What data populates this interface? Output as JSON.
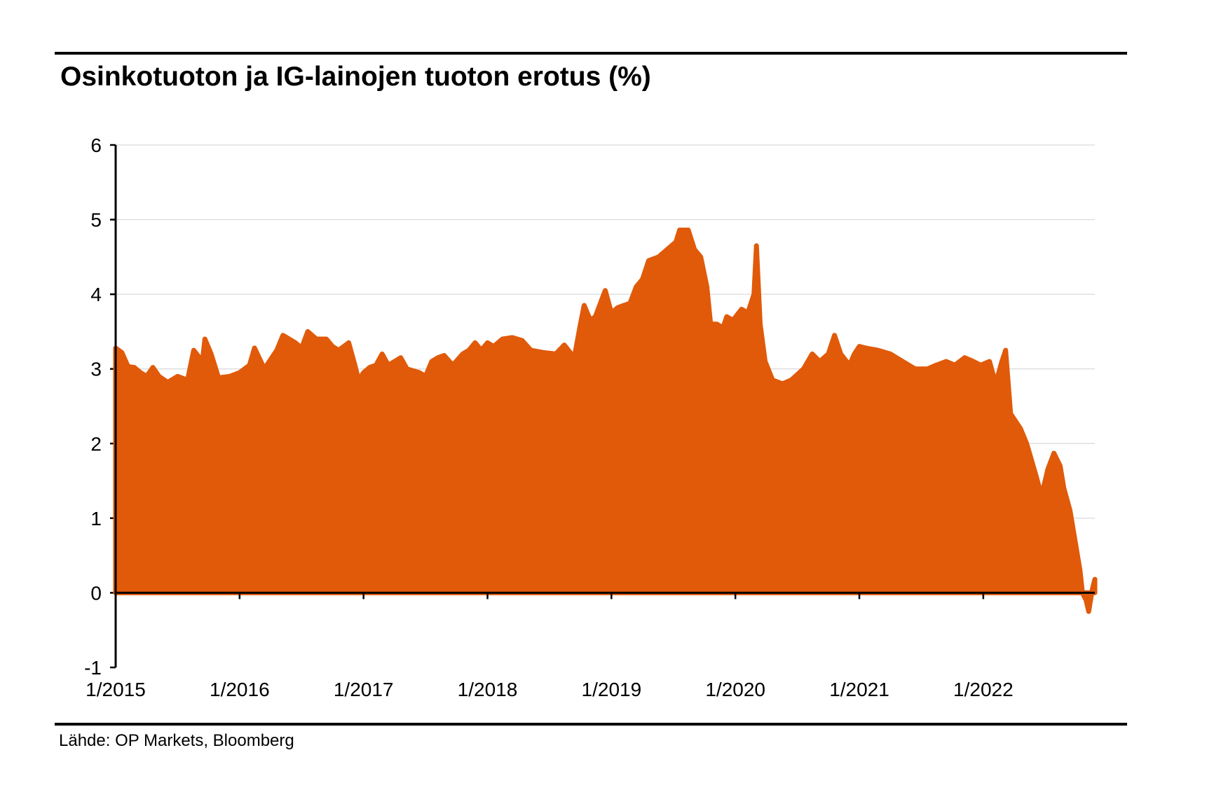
{
  "title": "Osinkotuoton ja IG-lainojen tuoton erotus (%)",
  "source": "Lähde: OP Markets, Bloomberg",
  "colors": {
    "series": "#E05A0A",
    "grid": "#D9D9D9",
    "axis": "#000000"
  },
  "chart_data": {
    "type": "area",
    "title": "Osinkotuoton ja IG-lainojen tuoton erotus (%)",
    "xlabel": "",
    "ylabel": "",
    "ylim": [
      -1,
      6
    ],
    "yticks": [
      "-1",
      "0",
      "1",
      "2",
      "3",
      "4",
      "5",
      "6"
    ],
    "xlim": [
      2015.0,
      2022.9
    ],
    "xticks": [
      {
        "x": 2015,
        "label": "1/2015"
      },
      {
        "x": 2016,
        "label": "1/2016"
      },
      {
        "x": 2017,
        "label": "1/2017"
      },
      {
        "x": 2018,
        "label": "1/2018"
      },
      {
        "x": 2019,
        "label": "1/2019"
      },
      {
        "x": 2020,
        "label": "1/2020"
      },
      {
        "x": 2021,
        "label": "1/2021"
      },
      {
        "x": 2022,
        "label": "1/2022"
      }
    ],
    "grid": true,
    "legend": "none",
    "series": [
      {
        "points": [
          [
            2015.0,
            3.28
          ],
          [
            2015.05,
            3.22
          ],
          [
            2015.1,
            3.03
          ],
          [
            2015.15,
            3.02
          ],
          [
            2015.2,
            2.95
          ],
          [
            2015.25,
            2.9
          ],
          [
            2015.3,
            3.02
          ],
          [
            2015.35,
            2.9
          ],
          [
            2015.42,
            2.82
          ],
          [
            2015.5,
            2.9
          ],
          [
            2015.58,
            2.85
          ],
          [
            2015.63,
            3.25
          ],
          [
            2015.7,
            3.1
          ],
          [
            2015.72,
            3.4
          ],
          [
            2015.77,
            3.2
          ],
          [
            2015.83,
            2.88
          ],
          [
            2015.92,
            2.9
          ],
          [
            2016.0,
            2.95
          ],
          [
            2016.08,
            3.05
          ],
          [
            2016.12,
            3.28
          ],
          [
            2016.2,
            3.0
          ],
          [
            2016.3,
            3.25
          ],
          [
            2016.35,
            3.45
          ],
          [
            2016.45,
            3.35
          ],
          [
            2016.5,
            3.28
          ],
          [
            2016.55,
            3.5
          ],
          [
            2016.62,
            3.4
          ],
          [
            2016.7,
            3.4
          ],
          [
            2016.75,
            3.3
          ],
          [
            2016.8,
            3.25
          ],
          [
            2016.88,
            3.35
          ],
          [
            2016.93,
            3.05
          ],
          [
            2016.96,
            2.85
          ],
          [
            2017.0,
            2.95
          ],
          [
            2017.05,
            3.02
          ],
          [
            2017.1,
            3.05
          ],
          [
            2017.15,
            3.2
          ],
          [
            2017.2,
            3.05
          ],
          [
            2017.25,
            3.1
          ],
          [
            2017.3,
            3.15
          ],
          [
            2017.35,
            3.0
          ],
          [
            2017.45,
            2.95
          ],
          [
            2017.5,
            2.9
          ],
          [
            2017.55,
            3.1
          ],
          [
            2017.6,
            3.15
          ],
          [
            2017.65,
            3.18
          ],
          [
            2017.72,
            3.05
          ],
          [
            2017.8,
            3.2
          ],
          [
            2017.85,
            3.25
          ],
          [
            2017.9,
            3.35
          ],
          [
            2017.95,
            3.25
          ],
          [
            2018.0,
            3.35
          ],
          [
            2018.05,
            3.3
          ],
          [
            2018.12,
            3.4
          ],
          [
            2018.2,
            3.42
          ],
          [
            2018.28,
            3.38
          ],
          [
            2018.35,
            3.25
          ],
          [
            2018.45,
            3.22
          ],
          [
            2018.55,
            3.2
          ],
          [
            2018.62,
            3.32
          ],
          [
            2018.7,
            3.15
          ],
          [
            2018.75,
            3.6
          ],
          [
            2018.78,
            3.85
          ],
          [
            2018.83,
            3.65
          ],
          [
            2018.87,
            3.7
          ],
          [
            2018.92,
            3.92
          ],
          [
            2018.95,
            4.05
          ],
          [
            2019.0,
            3.75
          ],
          [
            2019.05,
            3.82
          ],
          [
            2019.1,
            3.85
          ],
          [
            2019.15,
            3.88
          ],
          [
            2019.2,
            4.1
          ],
          [
            2019.25,
            4.2
          ],
          [
            2019.3,
            4.45
          ],
          [
            2019.38,
            4.5
          ],
          [
            2019.45,
            4.6
          ],
          [
            2019.52,
            4.7
          ],
          [
            2019.55,
            4.86
          ],
          [
            2019.62,
            4.86
          ],
          [
            2019.67,
            4.6
          ],
          [
            2019.72,
            4.5
          ],
          [
            2019.77,
            4.1
          ],
          [
            2019.8,
            3.6
          ],
          [
            2019.85,
            3.6
          ],
          [
            2019.9,
            3.55
          ],
          [
            2019.93,
            3.7
          ],
          [
            2019.98,
            3.65
          ],
          [
            2020.05,
            3.8
          ],
          [
            2020.1,
            3.75
          ],
          [
            2020.15,
            4.0
          ],
          [
            2020.17,
            4.65
          ],
          [
            2020.2,
            3.6
          ],
          [
            2020.24,
            3.1
          ],
          [
            2020.3,
            2.85
          ],
          [
            2020.38,
            2.8
          ],
          [
            2020.45,
            2.85
          ],
          [
            2020.55,
            3.0
          ],
          [
            2020.62,
            3.2
          ],
          [
            2020.68,
            3.1
          ],
          [
            2020.75,
            3.2
          ],
          [
            2020.8,
            3.45
          ],
          [
            2020.85,
            3.2
          ],
          [
            2020.92,
            3.05
          ],
          [
            2020.96,
            3.2
          ],
          [
            2021.0,
            3.3
          ],
          [
            2021.05,
            3.28
          ],
          [
            2021.15,
            3.25
          ],
          [
            2021.25,
            3.2
          ],
          [
            2021.35,
            3.1
          ],
          [
            2021.45,
            3.0
          ],
          [
            2021.55,
            3.0
          ],
          [
            2021.62,
            3.05
          ],
          [
            2021.7,
            3.1
          ],
          [
            2021.77,
            3.05
          ],
          [
            2021.85,
            3.15
          ],
          [
            2021.92,
            3.1
          ],
          [
            2021.98,
            3.05
          ],
          [
            2022.05,
            3.1
          ],
          [
            2022.1,
            2.8
          ],
          [
            2022.15,
            3.1
          ],
          [
            2022.18,
            3.25
          ],
          [
            2022.22,
            2.4
          ],
          [
            2022.3,
            2.2
          ],
          [
            2022.35,
            2.0
          ],
          [
            2022.42,
            1.6
          ],
          [
            2022.47,
            1.3
          ],
          [
            2022.52,
            1.65
          ],
          [
            2022.57,
            1.87
          ],
          [
            2022.62,
            1.7
          ],
          [
            2022.65,
            1.4
          ],
          [
            2022.7,
            1.1
          ],
          [
            2022.75,
            0.6
          ],
          [
            2022.78,
            0.3
          ],
          [
            2022.8,
            0.0
          ],
          [
            2022.83,
            -0.1
          ],
          [
            2022.85,
            -0.25
          ],
          [
            2022.88,
            0.05
          ],
          [
            2022.9,
            0.18
          ]
        ]
      }
    ]
  }
}
